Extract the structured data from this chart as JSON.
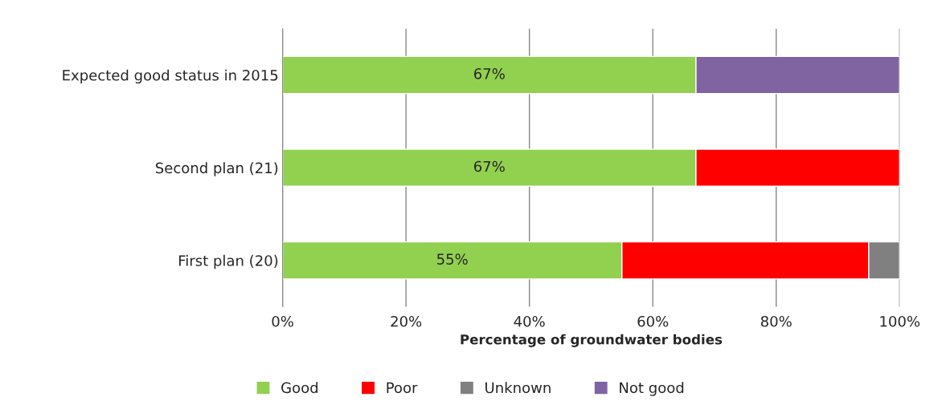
{
  "chart_data": {
    "type": "bar",
    "orientation": "horizontal",
    "stacked": true,
    "xlabel": "Percentage of groundwater bodies",
    "categories": [
      "Expected good status in 2015",
      "Second plan (21)",
      "First plan (20)"
    ],
    "series": [
      {
        "name": "Good",
        "color": "#92d050",
        "values": [
          67,
          67,
          55
        ],
        "value_labels": [
          "67%",
          "67%",
          "55%"
        ]
      },
      {
        "name": "Poor",
        "color": "#ff0000",
        "values": [
          null,
          33,
          40
        ]
      },
      {
        "name": "Unknown",
        "color": "#808080",
        "values": [
          null,
          null,
          5
        ]
      },
      {
        "name": "Not good",
        "color": "#8064a2",
        "values": [
          33,
          null,
          null
        ]
      }
    ],
    "xlim": [
      0,
      100
    ],
    "xticks": [
      {
        "value": 0,
        "label": "0%"
      },
      {
        "value": 20,
        "label": "20%"
      },
      {
        "value": 40,
        "label": "40%"
      },
      {
        "value": 60,
        "label": "60%"
      },
      {
        "value": 80,
        "label": "80%"
      },
      {
        "value": 100,
        "label": "100%"
      }
    ],
    "grid": "x",
    "legend": "bottom"
  }
}
